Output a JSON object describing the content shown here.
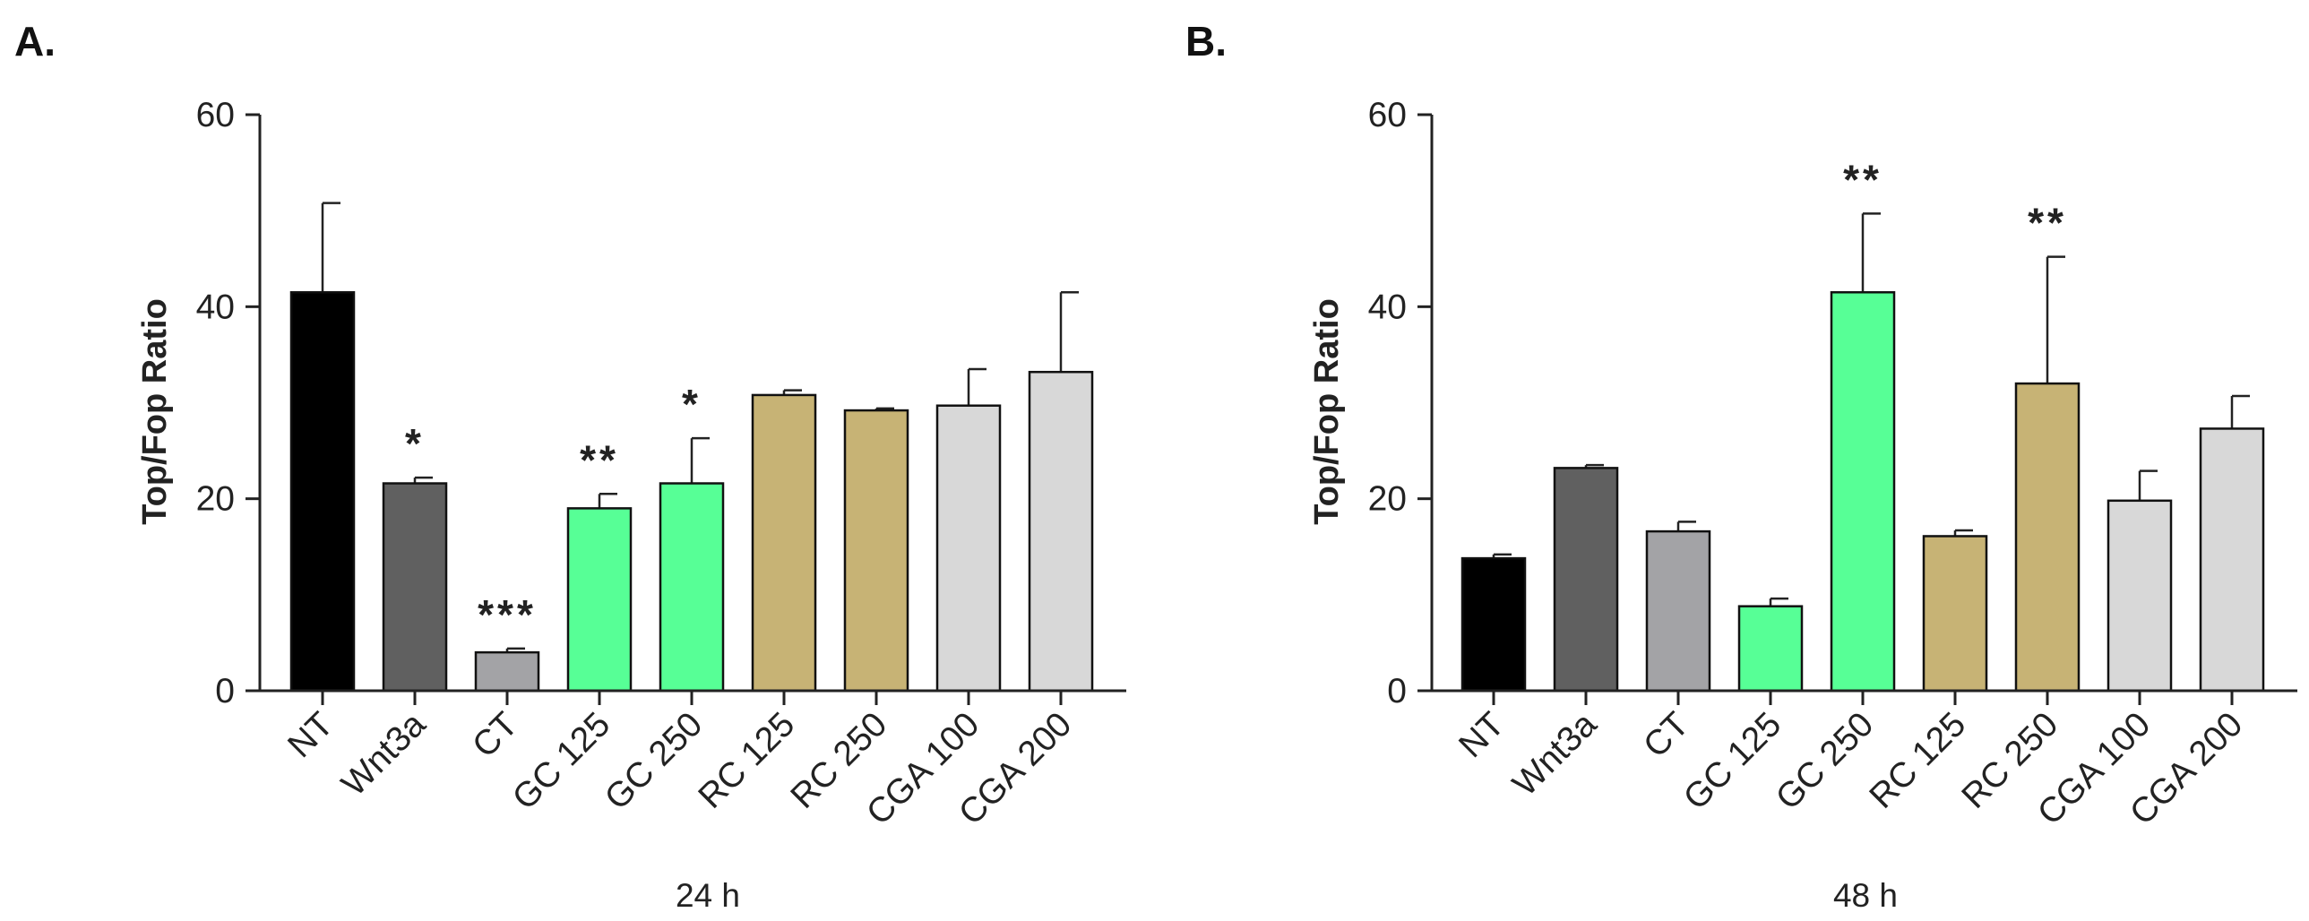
{
  "chart_data": [
    {
      "type": "bar",
      "panel_label": "A.",
      "title": "",
      "xlabel": "24 h",
      "ylabel": "Top/Fop Ratio",
      "ylim": [
        0,
        60
      ],
      "yticks": [
        "0",
        "20",
        "40",
        "60"
      ],
      "categories": [
        "NT",
        "Wnt3a",
        "CT",
        "GC 125",
        "GC 250",
        "RC 125",
        "RC 250",
        "CGA 100",
        "CGA 200"
      ],
      "values": [
        41.5,
        21.6,
        4.0,
        19.0,
        21.6,
        30.8,
        29.2,
        29.7,
        33.2
      ],
      "errors": [
        9.3,
        0.6,
        0.4,
        1.5,
        4.7,
        0.5,
        0.2,
        3.8,
        8.3
      ],
      "colors": [
        "#000000",
        "#606060",
        "#a3a3a6",
        "#57ff96",
        "#57ff96",
        "#c7b375",
        "#c7b375",
        "#d8d8d8",
        "#d8d8d8"
      ],
      "significance": [
        "",
        "*",
        "***",
        "**",
        "*",
        "",
        "",
        "",
        ""
      ],
      "significance_colors": [
        "",
        "#111111",
        "#a0a0a0",
        "#19c98a",
        "#19c98a",
        "",
        "",
        "",
        ""
      ]
    },
    {
      "type": "bar",
      "panel_label": "B.",
      "title": "",
      "xlabel": "48 h",
      "ylabel": "Top/Fop Ratio",
      "ylim": [
        0,
        60
      ],
      "yticks": [
        "0",
        "20",
        "40",
        "60"
      ],
      "categories": [
        "NT",
        "Wnt3a",
        "CT",
        "GC 125",
        "GC 250",
        "RC 125",
        "RC 250",
        "CGA 100",
        "CGA 200"
      ],
      "values": [
        13.8,
        23.2,
        16.6,
        8.8,
        41.5,
        16.1,
        32.0,
        19.8,
        27.3
      ],
      "errors": [
        0.4,
        0.3,
        1.0,
        0.8,
        8.2,
        0.6,
        13.2,
        3.1,
        3.4
      ],
      "colors": [
        "#000000",
        "#606060",
        "#a3a3a6",
        "#57ff96",
        "#57ff96",
        "#c7b375",
        "#c7b375",
        "#d8d8d8",
        "#d8d8d8"
      ],
      "significance": [
        "",
        "",
        "",
        "",
        "**",
        "",
        "**",
        "",
        ""
      ],
      "significance_colors": [
        "",
        "",
        "",
        "",
        "#19c98a",
        "",
        "#a58c44",
        "",
        ""
      ]
    }
  ]
}
